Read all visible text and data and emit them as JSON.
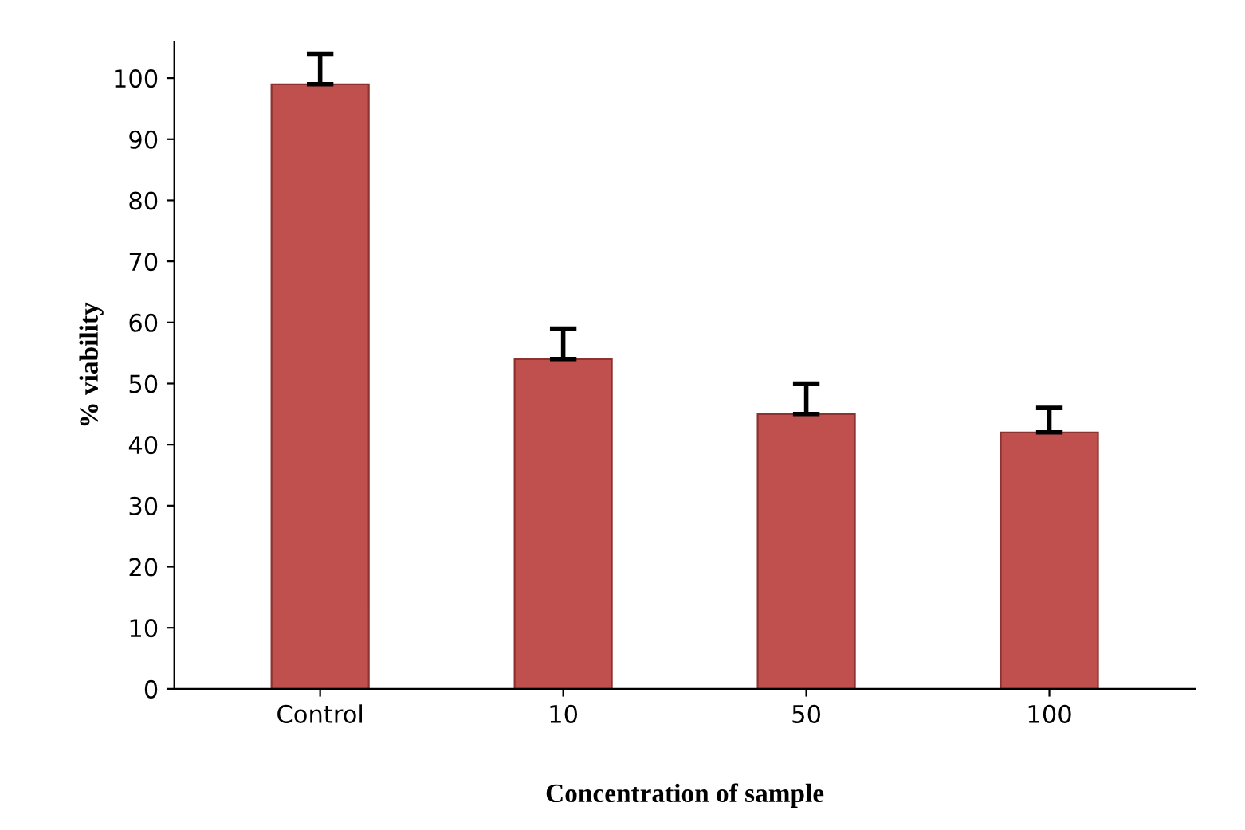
{
  "chart_data": {
    "type": "bar",
    "xlabel": "Concentration of sample",
    "ylabel": "% viability",
    "categories": [
      "Control",
      "10",
      "50",
      "100"
    ],
    "values": [
      99,
      54,
      45,
      42
    ],
    "errors": [
      [
        99,
        104
      ],
      [
        54,
        59
      ],
      [
        45,
        50
      ],
      [
        42,
        46
      ]
    ],
    "color": "#c0504d",
    "ylim": [
      0,
      106
    ],
    "yticks": [
      0,
      10,
      20,
      30,
      40,
      50,
      60,
      70,
      80,
      90,
      100
    ],
    "grid": false,
    "legend": false
  }
}
